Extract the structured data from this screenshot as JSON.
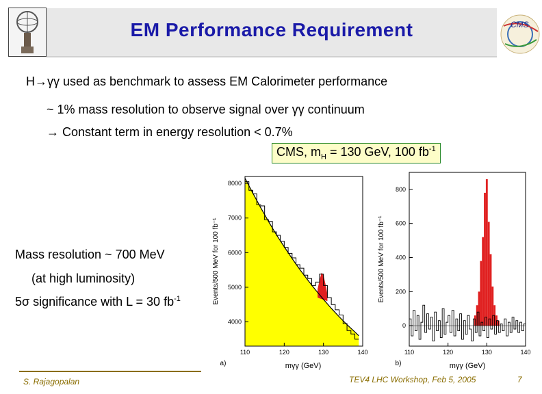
{
  "slide": {
    "title": "EM Performance Requirement",
    "bullet_main": "H→γγ used as benchmark to assess EM Calorimeter performance",
    "sub1": "~ 1% mass resolution to observe signal over γγ continuum",
    "sub2": "→ Constant term in energy resolution < 0.7%",
    "cms_label": {
      "pre": "CMS, m",
      "sub": "H",
      "mid": " = 130 GeV, 100 fb",
      "sup": "-1"
    },
    "mass_res": "Mass resolution ~ 700 MeV",
    "lumi": "(at high luminosity)",
    "signif": "5σ significance with L = 30 fb",
    "signif_sup": "-1",
    "footer_author": "S. Rajagopalan",
    "footer_event": "TEV4 LHC Workshop, Feb 5, 2005",
    "page_number": "7",
    "logo_right_text": "CMS"
  },
  "chart_data": [
    {
      "type": "area",
      "panel": "a)",
      "xlabel": "mγγ (GeV)",
      "ylabel": "Events/500 MeV for 100 fb⁻¹",
      "xlim": [
        110,
        140
      ],
      "ylim": [
        3300,
        8200
      ],
      "xticks": [
        110,
        120,
        130,
        140
      ],
      "yticks": [
        4000,
        5000,
        6000,
        7000,
        8000
      ],
      "background_fit": {
        "x": [
          110,
          112,
          114,
          116,
          118,
          120,
          122,
          124,
          126,
          128,
          130,
          132,
          134,
          136,
          138,
          139
        ],
        "y": [
          8150,
          7720,
          7300,
          6900,
          6520,
          6170,
          5830,
          5510,
          5210,
          4920,
          4650,
          4390,
          4150,
          3920,
          3710,
          3600
        ]
      },
      "histogram": {
        "x": [
          110.5,
          111.5,
          112.5,
          113.5,
          114.5,
          115.5,
          116.5,
          117.5,
          118.5,
          119.5,
          120.5,
          121.5,
          122.5,
          123.5,
          124.5,
          125.5,
          126.5,
          127.5,
          128.5,
          129.5,
          130.5,
          131.5,
          132.5,
          133.5,
          134.5,
          135.5,
          136.5,
          137.5,
          138.5
        ],
        "y": [
          8050,
          7800,
          7700,
          7380,
          7350,
          6950,
          6900,
          6600,
          6500,
          6330,
          6150,
          5980,
          5850,
          5650,
          5550,
          5350,
          5250,
          5050,
          5150,
          5380,
          5050,
          4700,
          4500,
          4350,
          4200,
          3950,
          3750,
          3650,
          3500
        ]
      },
      "signal": {
        "x": [
          128.5,
          129.0,
          129.5,
          130.0,
          130.5,
          131.0
        ],
        "y": [
          4950,
          5200,
          5420,
          5350,
          5100,
          4800
        ]
      }
    },
    {
      "type": "bar",
      "panel": "b)",
      "xlabel": "mγγ (GeV)",
      "ylabel": "Events/500 MeV for 100 fb⁻¹",
      "xlim": [
        110,
        140
      ],
      "ylim": [
        -120,
        900
      ],
      "xticks": [
        110,
        120,
        130,
        140
      ],
      "yticks": [
        0,
        200,
        400,
        600,
        800
      ],
      "residuals": [
        40,
        -60,
        90,
        -30,
        60,
        -80,
        20,
        120,
        -40,
        70,
        -20,
        50,
        -90,
        80,
        -30,
        30,
        -70,
        100,
        -50,
        20,
        60,
        -40,
        90,
        -60,
        40,
        -30,
        70,
        -80,
        30,
        -50,
        60,
        -20,
        -90,
        40,
        -40,
        80,
        -60,
        20,
        -30,
        50,
        -70,
        40,
        -20,
        60,
        -50,
        30,
        -40,
        10,
        -30,
        40,
        -60,
        20,
        -40,
        50,
        -20,
        30,
        -40,
        20,
        -30,
        10
      ],
      "signal": {
        "x": [
          127.0,
          127.5,
          128.0,
          128.5,
          129.0,
          129.5,
          130.0,
          130.5,
          131.0,
          131.5,
          132.0,
          132.5,
          133.0
        ],
        "y": [
          60,
          120,
          200,
          380,
          520,
          780,
          860,
          610,
          420,
          230,
          120,
          60,
          30
        ]
      }
    }
  ]
}
